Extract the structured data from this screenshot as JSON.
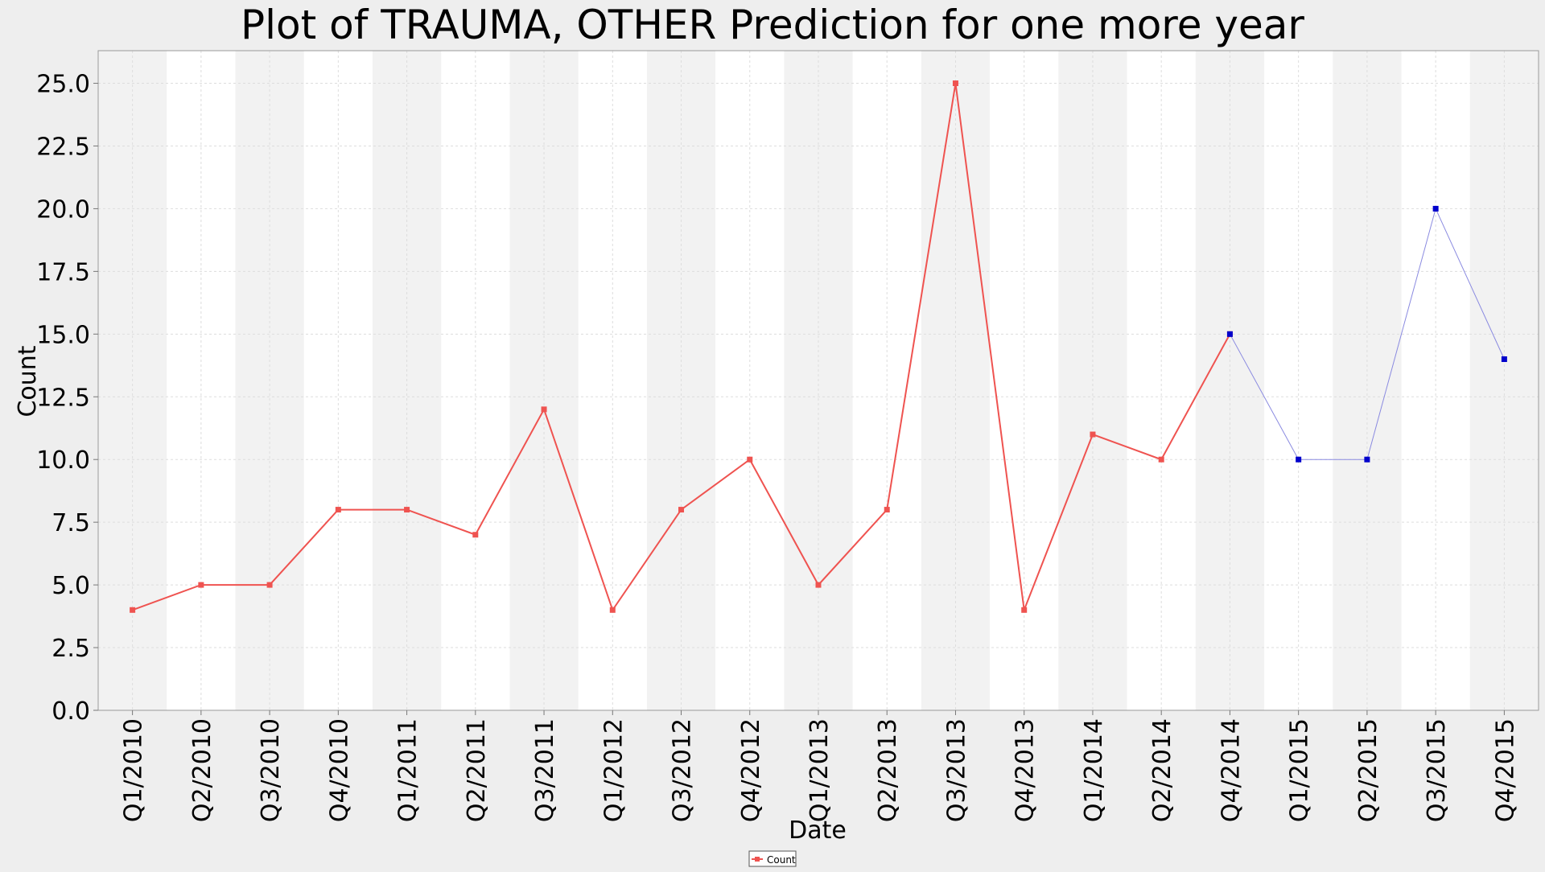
{
  "chart_data": {
    "type": "line",
    "title": "Plot of TRAUMA, OTHER Prediction for one more year",
    "xlabel": "Date",
    "ylabel": "Count",
    "ylim": [
      0,
      26.3
    ],
    "yticks": [
      "0.0",
      "2.5",
      "5.0",
      "7.5",
      "10.0",
      "12.5",
      "15.0",
      "17.5",
      "20.0",
      "22.5",
      "25.0"
    ],
    "grid": true,
    "legend_position": "bottom-center",
    "categories": [
      "Q1/2010",
      "Q2/2010",
      "Q3/2010",
      "Q4/2010",
      "Q1/2011",
      "Q2/2011",
      "Q3/2011",
      "Q1/2012",
      "Q3/2012",
      "Q4/2012",
      "Q1/2013",
      "Q2/2013",
      "Q3/2013",
      "Q4/2013",
      "Q1/2014",
      "Q2/2014",
      "Q4/2014",
      "Q1/2015",
      "Q2/2015",
      "Q3/2015",
      "Q4/2015"
    ],
    "series": [
      {
        "name": "Count",
        "color": "#ef5350",
        "legend": true,
        "values": [
          4,
          5,
          5,
          8,
          8,
          7,
          12,
          4,
          8,
          10,
          5,
          8,
          25,
          4,
          11,
          10,
          15,
          null,
          null,
          null,
          null
        ]
      },
      {
        "color": "#0000cc",
        "line_color": "#8a8ae0",
        "legend": false,
        "values": [
          null,
          null,
          null,
          null,
          null,
          null,
          null,
          null,
          null,
          null,
          null,
          null,
          null,
          null,
          null,
          null,
          15,
          10,
          10,
          20,
          14
        ]
      }
    ]
  }
}
